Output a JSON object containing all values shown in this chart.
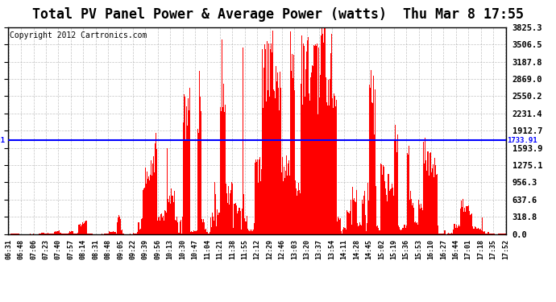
{
  "title": "Total PV Panel Power & Average Power (watts)  Thu Mar 8 17:55",
  "copyright_text": "Copyright 2012 Cartronics.com",
  "average_power": 1733.91,
  "y_max": 3825.3,
  "y_ticks": [
    0.0,
    318.8,
    637.6,
    956.3,
    1275.1,
    1593.9,
    1912.7,
    2231.4,
    2550.2,
    2869.0,
    3187.8,
    3506.5,
    3825.3
  ],
  "y_tick_labels": [
    "0.0",
    "318.8",
    "637.6",
    "956.3",
    "1275.1",
    "1593.9",
    "1912.7",
    "2231.4",
    "2550.2",
    "2869.0",
    "3187.8",
    "3506.5",
    "3825.3"
  ],
  "x_tick_labels": [
    "06:31",
    "06:48",
    "07:06",
    "07:23",
    "07:40",
    "07:57",
    "08:14",
    "08:31",
    "08:48",
    "09:05",
    "09:22",
    "09:39",
    "09:56",
    "10:13",
    "10:30",
    "10:47",
    "11:04",
    "11:21",
    "11:38",
    "11:55",
    "12:12",
    "12:29",
    "12:46",
    "13:03",
    "13:20",
    "13:37",
    "13:54",
    "14:11",
    "14:28",
    "14:45",
    "15:02",
    "15:19",
    "15:36",
    "15:53",
    "16:10",
    "16:27",
    "16:44",
    "17:01",
    "17:18",
    "17:35",
    "17:52"
  ],
  "bar_color": "#FF0000",
  "avg_line_color": "#0000FF",
  "background_color": "#FFFFFF",
  "grid_color": "#AAAAAA",
  "title_fontsize": 12,
  "copyright_fontsize": 7,
  "n_bars": 686
}
